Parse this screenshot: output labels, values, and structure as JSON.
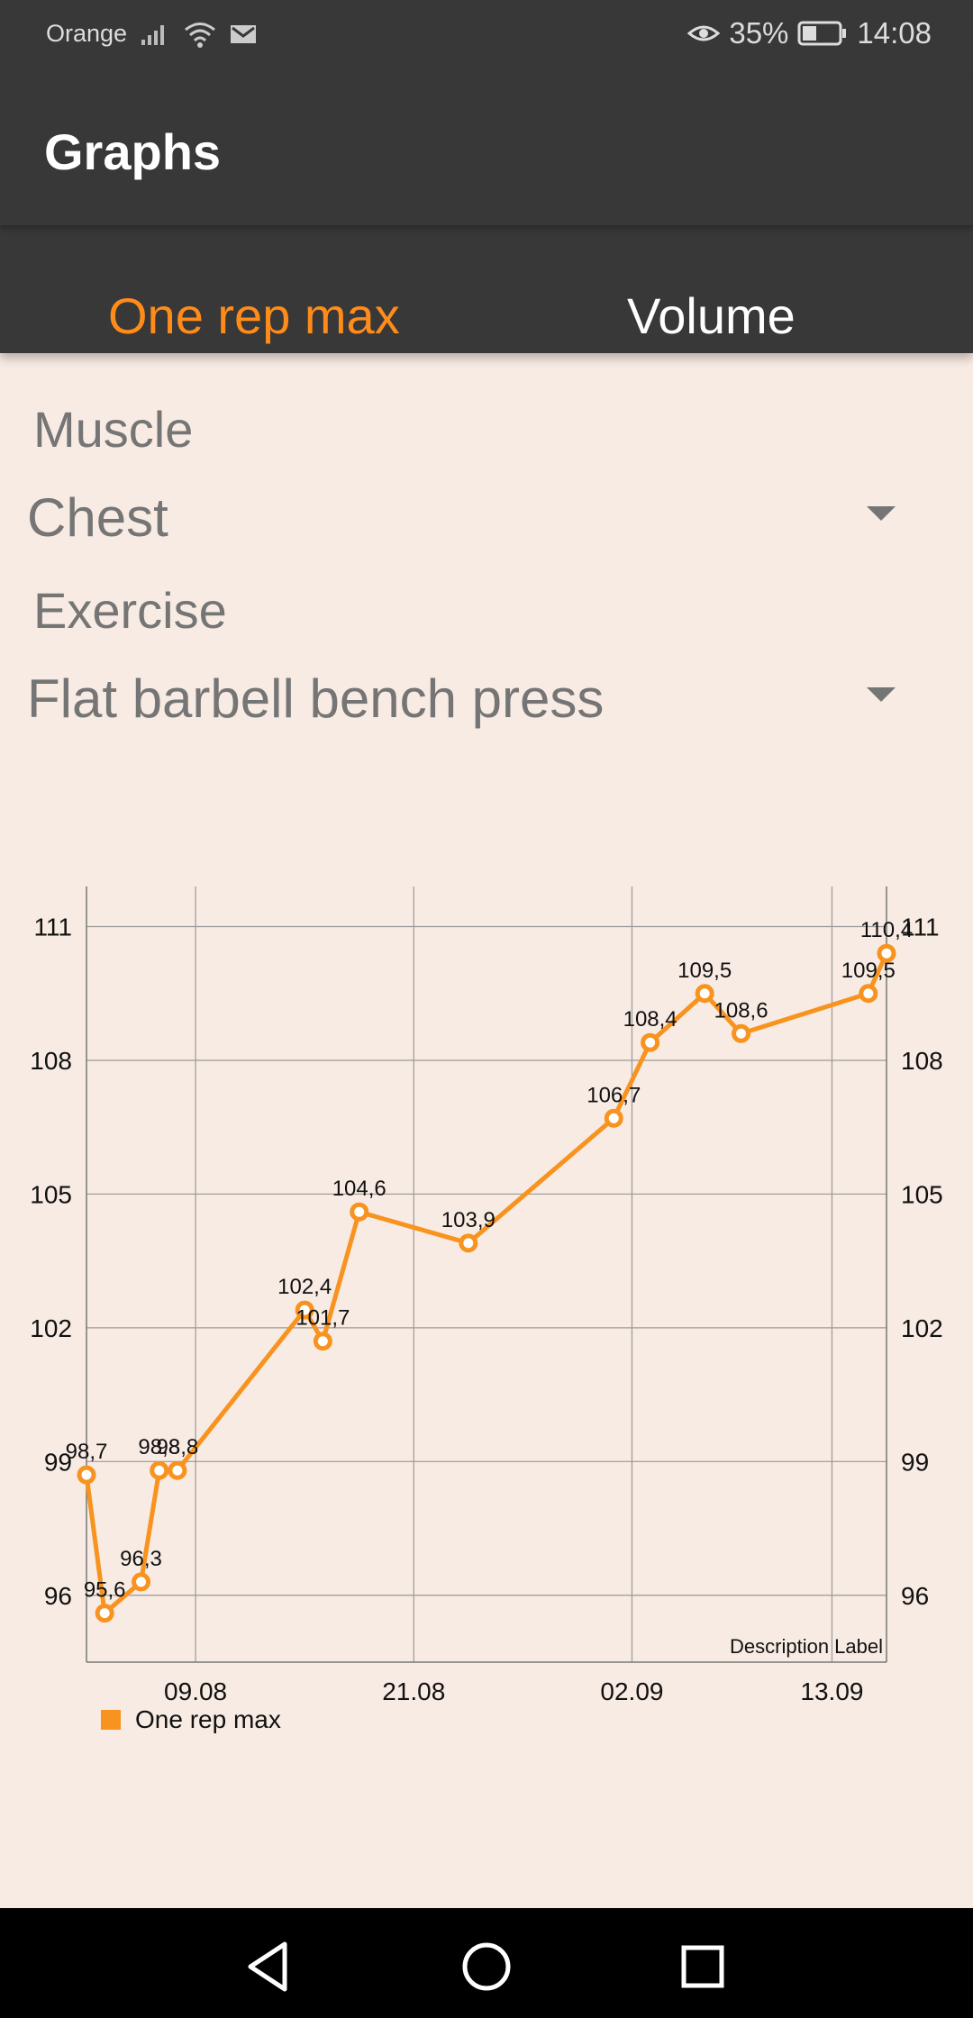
{
  "status_bar": {
    "carrier": "Orange",
    "battery": "35%",
    "time": "14:08"
  },
  "app_bar": {
    "title": "Graphs"
  },
  "tabs": [
    {
      "label": "One rep max",
      "selected": true
    },
    {
      "label": "Volume",
      "selected": false
    }
  ],
  "form": {
    "muscle_label": "Muscle",
    "muscle_value": "Chest",
    "exercise_label": "Exercise",
    "exercise_value": "Flat barbell bench press"
  },
  "colors": {
    "accent": "#ff8c1a",
    "bar_bg": "#393838",
    "page_bg": "#f8ebe3"
  },
  "chart_data": {
    "type": "line",
    "series": [
      {
        "name": "One rep max",
        "color": "#f7931e",
        "points": [
          {
            "x": "2018-08-03",
            "y": 98.7,
            "label": "98,7"
          },
          {
            "x": "2018-08-04",
            "y": 95.6,
            "label": "95,6"
          },
          {
            "x": "2018-08-06",
            "y": 96.3,
            "label": "96,3"
          },
          {
            "x": "2018-08-07",
            "y": 98.8,
            "label": "98,8"
          },
          {
            "x": "2018-08-08",
            "y": 98.8,
            "label": "98,8"
          },
          {
            "x": "2018-08-15",
            "y": 102.4,
            "label": "102,4"
          },
          {
            "x": "2018-08-16",
            "y": 101.7,
            "label": "101,7"
          },
          {
            "x": "2018-08-18",
            "y": 104.6,
            "label": "104,6"
          },
          {
            "x": "2018-08-24",
            "y": 103.9,
            "label": "103,9"
          },
          {
            "x": "2018-09-01",
            "y": 106.7,
            "label": "106,7"
          },
          {
            "x": "2018-09-03",
            "y": 108.4,
            "label": "108,4"
          },
          {
            "x": "2018-09-06",
            "y": 109.5,
            "label": "109,5"
          },
          {
            "x": "2018-09-08",
            "y": 108.6,
            "label": "108,6"
          },
          {
            "x": "2018-09-15",
            "y": 109.5,
            "label": "109,5"
          },
          {
            "x": "2018-09-16",
            "y": 110.4,
            "label": "110,4"
          }
        ]
      }
    ],
    "x_ticks": [
      "09.08",
      "21.08",
      "02.09",
      "13.09"
    ],
    "y_ticks": [
      96,
      99,
      102,
      105,
      108,
      111
    ],
    "ylim": [
      94.5,
      111.9
    ],
    "grid": true,
    "legend": "bottom-left",
    "description": "Description Label"
  }
}
